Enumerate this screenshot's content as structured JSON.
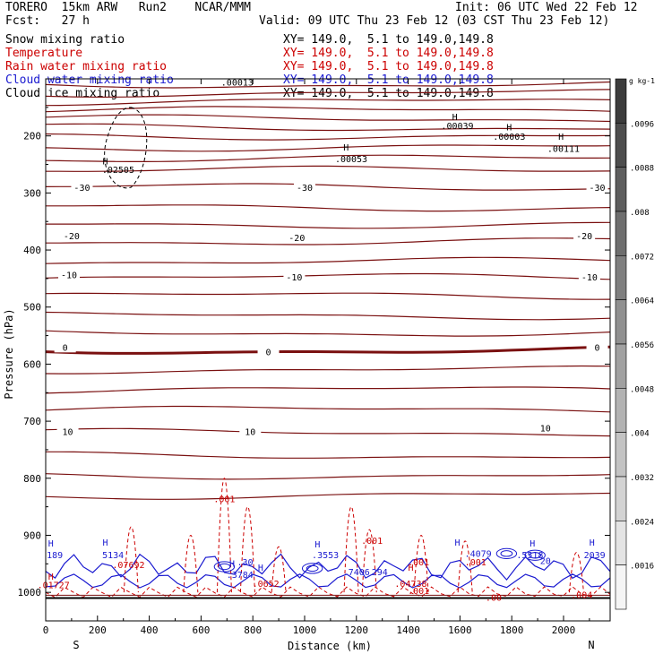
{
  "header": {
    "model": "TORERO  15km ARW   Run2    NCAR/MMM",
    "init": "Init: 06 UTC Wed 22 Feb 12",
    "fcst": "Fcst:   27 h",
    "valid": "Valid: 09 UTC Thu 23 Feb 12 (03 CST Thu 23 Feb 12)"
  },
  "fields": [
    {
      "name": "Snow mixing ratio",
      "xy": "XY= 149.0,  5.1 to 149.0,149.8",
      "color": "#000000",
      "xycolor": "#000000"
    },
    {
      "name": "Temperature",
      "xy": "XY= 149.0,  5.1 to 149.0,149.8",
      "color": "#cc0000",
      "xycolor": "#cc0000"
    },
    {
      "name": "Rain water mixing ratio",
      "xy": "XY= 149.0,  5.1 to 149.0,149.8",
      "color": "#cc0000",
      "xycolor": "#cc0000"
    },
    {
      "name": "Cloud water mixing ratio",
      "xy": "XY= 149.0,  5.1 to 149.0,149.8",
      "color": "#1a1ad0",
      "xycolor": "#1a1ad0"
    },
    {
      "name": "Cloud ice mixing ratio",
      "xy": "XY= 149.0,  5.1 to 149.0,149.8",
      "color": "#000000",
      "xycolor": "#000000"
    }
  ],
  "chart_data": {
    "type": "contour",
    "xlabel": "Distance (km)",
    "ylabel": "Pressure (hPa)",
    "xlim": [
      0,
      2180
    ],
    "ylim": [
      1050,
      100
    ],
    "x_ticks": [
      0,
      200,
      400,
      600,
      800,
      1000,
      1200,
      1400,
      1600,
      1800,
      2000
    ],
    "y_ticks": [
      200,
      300,
      400,
      500,
      600,
      700,
      800,
      900,
      1000
    ],
    "endpoints": {
      "left": "S",
      "right": "N"
    },
    "temperature_contours": [
      {
        "label": "-30",
        "p_left": 290,
        "p_mid": 290,
        "p_right": 290
      },
      {
        "label": "-20",
        "p_left": 385,
        "p_mid": 378,
        "p_right": 385
      },
      {
        "label": "-10",
        "p_left": 452,
        "p_mid": 448,
        "p_right": 448
      },
      {
        "label": "0",
        "p_left": 575,
        "p_mid": 578,
        "p_right": 572
      },
      {
        "label": "10",
        "p_left": 720,
        "p_mid": 720,
        "p_right": 718
      }
    ],
    "temperature_labels_text": [
      {
        "text": "-30",
        "x": 140,
        "p": 290
      },
      {
        "text": "-30",
        "x": 1000,
        "p": 290
      },
      {
        "text": "-30",
        "x": 2130,
        "p": 290
      },
      {
        "text": "-20",
        "x": 100,
        "p": 375
      },
      {
        "text": "-20",
        "x": 970,
        "p": 378
      },
      {
        "text": "-20",
        "x": 2080,
        "p": 375
      },
      {
        "text": "-10",
        "x": 90,
        "p": 443
      },
      {
        "text": "-10",
        "x": 960,
        "p": 447
      },
      {
        "text": "-10",
        "x": 2100,
        "p": 447
      },
      {
        "text": "0",
        "x": 75,
        "p": 570
      },
      {
        "text": "0",
        "x": 860,
        "p": 578
      },
      {
        "text": "0",
        "x": 2130,
        "p": 570
      },
      {
        "text": "10",
        "x": 85,
        "p": 718
      },
      {
        "text": "10",
        "x": 790,
        "p": 718
      },
      {
        "text": "10",
        "x": 1930,
        "p": 712
      }
    ],
    "isotherm_pressures": [
      110,
      125,
      140,
      155,
      170,
      185,
      200,
      220,
      240,
      260,
      290,
      325,
      355,
      385,
      420,
      448,
      480,
      515,
      545,
      576,
      610,
      645,
      680,
      720,
      760,
      795,
      830
    ],
    "maxima_labels": [
      {
        "text": ".00013",
        "x": 740,
        "p": 112
      },
      {
        "text": ".00039",
        "x": 1590,
        "p": 188
      },
      {
        "text": ".00003",
        "x": 1790,
        "p": 207
      },
      {
        "text": ".00111",
        "x": 2000,
        "p": 228
      },
      {
        "text": ".00053",
        "x": 1180,
        "p": 246
      },
      {
        "text": ".02505",
        "x": 280,
        "p": 265
      },
      {
        "text": ".001",
        "x": 690,
        "p": 842
      },
      {
        "text": ".001",
        "x": 1260,
        "p": 915
      },
      {
        "text": ".001",
        "x": 1440,
        "p": 953
      },
      {
        "text": ".001",
        "x": 1660,
        "p": 953
      },
      {
        "text": ".001",
        "x": 1440,
        "p": 1003
      },
      {
        "text": ".00",
        "x": 1730,
        "p": 1015
      },
      {
        "text": ".004",
        "x": 2070,
        "p": 1010
      },
      {
        "text": "5134",
        "x": 260,
        "p": 940
      },
      {
        "text": ".07692",
        "x": 320,
        "p": 957
      },
      {
        "text": ".3784",
        "x": 750,
        "p": 975
      },
      {
        "text": ".0652",
        "x": 850,
        "p": 990
      },
      {
        "text": ".3553",
        "x": 1080,
        "p": 940
      },
      {
        "text": ".7406",
        "x": 1200,
        "p": 970
      },
      {
        "text": "294",
        "x": 1290,
        "p": 970
      },
      {
        "text": ".04738",
        "x": 1410,
        "p": 990
      },
      {
        "text": ".4079",
        "x": 1670,
        "p": 938
      },
      {
        "text": ".5518",
        "x": 1870,
        "p": 940
      },
      {
        "text": "2039",
        "x": 2120,
        "p": 940
      },
      {
        "text": ".01727",
        "x": 30,
        "p": 993
      },
      {
        "text": "189",
        "x": 35,
        "p": 940
      },
      {
        "text": ".30",
        "x": 770,
        "p": 953
      },
      {
        "text": "20",
        "x": 1930,
        "p": 950
      }
    ],
    "h_markers": [
      {
        "x": 1580,
        "p": 172,
        "color": "#000"
      },
      {
        "x": 1790,
        "p": 190,
        "color": "#000"
      },
      {
        "x": 1990,
        "p": 207,
        "color": "#000"
      },
      {
        "x": 1160,
        "p": 226,
        "color": "#000"
      },
      {
        "x": 230,
        "p": 250,
        "color": "#000"
      },
      {
        "x": 20,
        "p": 920,
        "color": "#1a1ad0"
      },
      {
        "x": 230,
        "p": 918,
        "color": "#1a1ad0"
      },
      {
        "x": 1050,
        "p": 921,
        "color": "#1a1ad0"
      },
      {
        "x": 1590,
        "p": 918,
        "color": "#1a1ad0"
      },
      {
        "x": 1880,
        "p": 920,
        "color": "#1a1ad0"
      },
      {
        "x": 2110,
        "p": 918,
        "color": "#1a1ad0"
      },
      {
        "x": 720,
        "p": 955,
        "color": "#1a1ad0"
      },
      {
        "x": 830,
        "p": 962,
        "color": "#1a1ad0"
      },
      {
        "x": 1410,
        "p": 962,
        "color": "#cc0000"
      },
      {
        "x": 20,
        "p": 978,
        "color": "#cc0000"
      }
    ],
    "colorbar": {
      "unit": "g kg-1",
      "labels": [
        ".0096",
        ".0088",
        ".008",
        ".0072",
        ".0064",
        ".0056",
        ".0048",
        ".004",
        ".0032",
        ".0024",
        ".0016"
      ]
    }
  }
}
